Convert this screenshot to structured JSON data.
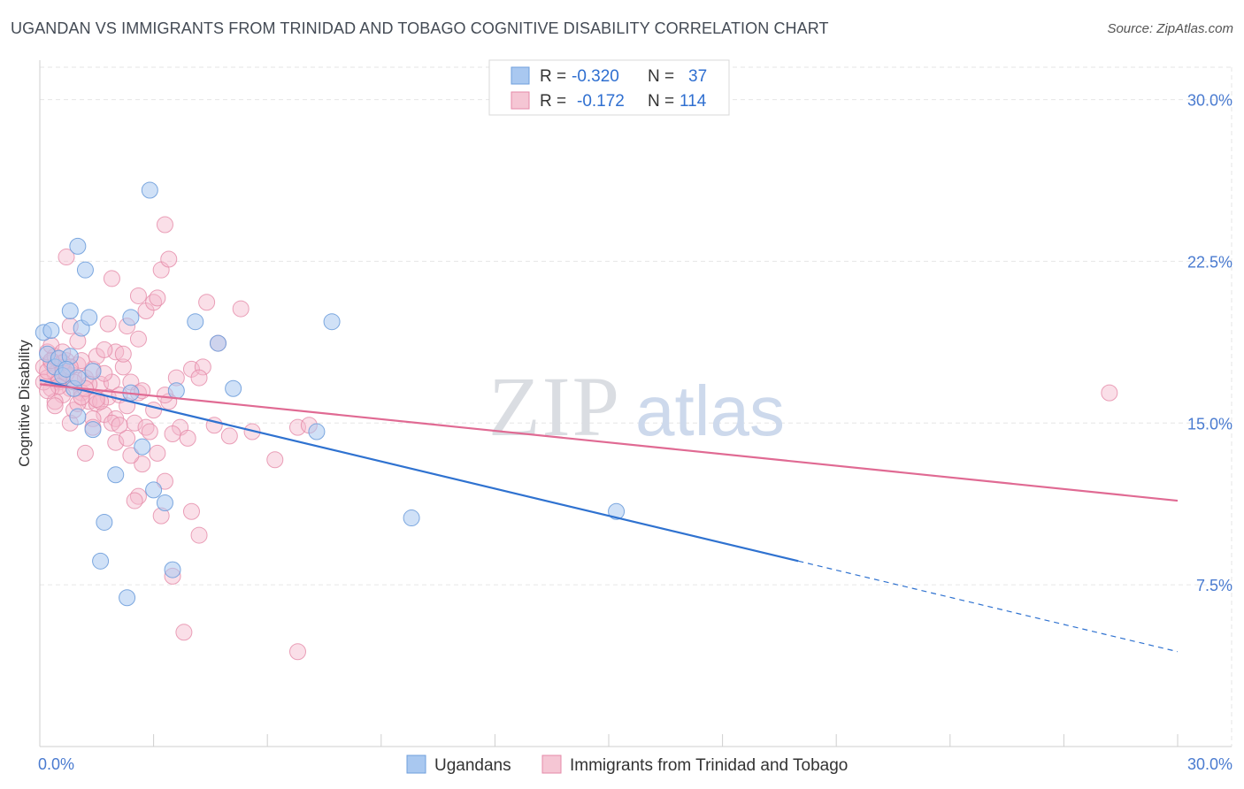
{
  "title": "UGANDAN VS IMMIGRANTS FROM TRINIDAD AND TOBAGO COGNITIVE DISABILITY CORRELATION CHART",
  "source": "Source: ZipAtlas.com",
  "watermark": {
    "zip": "ZIP",
    "atlas": "atlas"
  },
  "colors": {
    "blue_fill": "#a9c8f0",
    "blue_stroke": "#6f9fdc",
    "blue_line": "#2f72d0",
    "pink_fill": "#f5b8cb",
    "pink_stroke": "#e58aa8",
    "pink_line": "#e06a93",
    "grid": "#e6e6e6",
    "axis_text": "#4a7bd0"
  },
  "legend_top": {
    "rows": [
      {
        "r_label": "R = ",
        "r_value": "-0.320",
        "n_label": "N = ",
        "n_value": "37"
      },
      {
        "r_label": "R = ",
        "r_value": "-0.172",
        "n_label": "N = ",
        "n_value": "114"
      }
    ]
  },
  "legend_bottom": [
    "Ugandans",
    "Immigrants from Trinidad and Tobago"
  ],
  "chart_data": {
    "type": "scatter",
    "title": "UGANDAN VS IMMIGRANTS FROM TRINIDAD AND TOBAGO COGNITIVE DISABILITY CORRELATION CHART",
    "xlabel": "",
    "ylabel": "Cognitive Disability",
    "xlim": [
      0,
      30
    ],
    "ylim": [
      0,
      31.5
    ],
    "x_tick_labels": [
      "0.0%",
      "30.0%"
    ],
    "y_ticks": [
      7.5,
      15.0,
      22.5,
      30.0
    ],
    "y_tick_labels": [
      "7.5%",
      "15.0%",
      "22.5%",
      "30.0%"
    ],
    "legend_position": "top-center",
    "series": [
      {
        "name": "Ugandans",
        "r": -0.32,
        "n": 37,
        "trend": {
          "x0": 0.0,
          "y0": 17.0,
          "x1": 20.0,
          "y1": 8.6,
          "dash_to_x": 30.0,
          "dash_to_y": 4.4
        },
        "points": [
          [
            0.1,
            19.2
          ],
          [
            0.3,
            19.3
          ],
          [
            0.2,
            18.2
          ],
          [
            0.4,
            17.6
          ],
          [
            0.6,
            17.2
          ],
          [
            0.5,
            18.0
          ],
          [
            0.8,
            18.1
          ],
          [
            0.9,
            16.6
          ],
          [
            0.7,
            17.5
          ],
          [
            1.0,
            17.1
          ],
          [
            1.4,
            17.4
          ],
          [
            1.1,
            19.4
          ],
          [
            0.8,
            20.2
          ],
          [
            1.3,
            19.9
          ],
          [
            1.0,
            23.2
          ],
          [
            1.2,
            22.1
          ],
          [
            2.9,
            25.8
          ],
          [
            2.4,
            19.9
          ],
          [
            4.1,
            19.7
          ],
          [
            4.7,
            18.7
          ],
          [
            7.7,
            19.7
          ],
          [
            3.6,
            16.5
          ],
          [
            5.1,
            16.6
          ],
          [
            2.4,
            16.4
          ],
          [
            7.3,
            14.6
          ],
          [
            1.4,
            14.7
          ],
          [
            2.7,
            13.9
          ],
          [
            2.0,
            12.6
          ],
          [
            1.0,
            15.3
          ],
          [
            3.0,
            11.9
          ],
          [
            3.3,
            11.3
          ],
          [
            1.7,
            10.4
          ],
          [
            9.8,
            10.6
          ],
          [
            15.2,
            10.9
          ],
          [
            1.6,
            8.6
          ],
          [
            3.5,
            8.2
          ],
          [
            2.3,
            6.9
          ]
        ]
      },
      {
        "name": "Immigrants from Trinidad and Tobago",
        "r": -0.172,
        "n": 114,
        "trend": {
          "x0": 0.0,
          "y0": 16.8,
          "x1": 30.0,
          "y1": 11.4
        },
        "points": [
          [
            0.1,
            17.6
          ],
          [
            0.2,
            17.1
          ],
          [
            0.3,
            17.8
          ],
          [
            0.4,
            17.3
          ],
          [
            0.5,
            16.9
          ],
          [
            0.6,
            17.4
          ],
          [
            0.7,
            17.9
          ],
          [
            0.8,
            16.6
          ],
          [
            0.9,
            17.2
          ],
          [
            1.0,
            17.7
          ],
          [
            0.2,
            18.3
          ],
          [
            0.4,
            18.1
          ],
          [
            0.6,
            16.3
          ],
          [
            0.3,
            16.6
          ],
          [
            0.5,
            17.0
          ],
          [
            0.1,
            16.9
          ],
          [
            1.1,
            16.4
          ],
          [
            1.2,
            17.1
          ],
          [
            1.3,
            16.0
          ],
          [
            1.4,
            17.5
          ],
          [
            1.5,
            15.9
          ],
          [
            1.6,
            16.8
          ],
          [
            1.7,
            15.4
          ],
          [
            1.8,
            16.2
          ],
          [
            1.9,
            16.9
          ],
          [
            2.0,
            15.2
          ],
          [
            2.1,
            16.3
          ],
          [
            2.2,
            17.6
          ],
          [
            2.3,
            15.8
          ],
          [
            2.4,
            16.9
          ],
          [
            2.5,
            15.0
          ],
          [
            2.6,
            16.4
          ],
          [
            0.8,
            19.5
          ],
          [
            1.0,
            18.8
          ],
          [
            1.5,
            18.1
          ],
          [
            1.8,
            19.6
          ],
          [
            2.0,
            18.3
          ],
          [
            2.3,
            19.5
          ],
          [
            2.6,
            18.9
          ],
          [
            2.8,
            20.2
          ],
          [
            1.9,
            21.7
          ],
          [
            2.6,
            20.9
          ],
          [
            3.0,
            20.6
          ],
          [
            3.2,
            22.1
          ],
          [
            3.4,
            22.6
          ],
          [
            3.3,
            24.2
          ],
          [
            0.7,
            22.7
          ],
          [
            3.1,
            20.8
          ],
          [
            4.4,
            20.6
          ],
          [
            5.3,
            20.3
          ],
          [
            3.4,
            16.0
          ],
          [
            3.7,
            14.8
          ],
          [
            4.0,
            17.5
          ],
          [
            4.3,
            17.6
          ],
          [
            4.6,
            14.9
          ],
          [
            5.0,
            14.4
          ],
          [
            5.6,
            14.6
          ],
          [
            6.2,
            13.3
          ],
          [
            6.8,
            14.8
          ],
          [
            7.1,
            14.9
          ],
          [
            3.9,
            14.3
          ],
          [
            3.5,
            14.5
          ],
          [
            2.8,
            14.8
          ],
          [
            2.7,
            13.1
          ],
          [
            2.6,
            11.6
          ],
          [
            3.3,
            12.3
          ],
          [
            3.2,
            10.7
          ],
          [
            4.0,
            10.9
          ],
          [
            4.2,
            9.8
          ],
          [
            3.5,
            7.9
          ],
          [
            3.8,
            5.3
          ],
          [
            6.8,
            4.4
          ],
          [
            1.2,
            13.6
          ],
          [
            0.8,
            15.0
          ],
          [
            1.4,
            15.2
          ],
          [
            2.0,
            14.1
          ],
          [
            2.3,
            14.3
          ],
          [
            1.6,
            16.0
          ],
          [
            1.1,
            17.9
          ],
          [
            2.2,
            18.2
          ],
          [
            3.6,
            17.1
          ],
          [
            4.2,
            17.1
          ],
          [
            4.7,
            18.7
          ],
          [
            0.4,
            16.0
          ],
          [
            0.9,
            15.6
          ],
          [
            1.7,
            17.3
          ],
          [
            2.4,
            13.5
          ],
          [
            3.1,
            13.6
          ],
          [
            0.3,
            18.6
          ],
          [
            0.6,
            18.3
          ],
          [
            1.3,
            16.8
          ],
          [
            0.2,
            17.4
          ],
          [
            0.5,
            16.7
          ],
          [
            0.7,
            17.3
          ],
          [
            1.0,
            15.9
          ],
          [
            1.9,
            15.0
          ],
          [
            1.4,
            14.8
          ],
          [
            2.9,
            14.6
          ],
          [
            3.0,
            15.6
          ],
          [
            28.2,
            16.4
          ],
          [
            0.9,
            16.9
          ],
          [
            0.4,
            15.8
          ],
          [
            1.5,
            16.1
          ],
          [
            0.6,
            17.8
          ],
          [
            2.1,
            14.9
          ],
          [
            1.7,
            18.4
          ],
          [
            2.7,
            16.5
          ],
          [
            0.2,
            16.5
          ],
          [
            1.1,
            16.2
          ],
          [
            2.5,
            11.4
          ],
          [
            3.3,
            16.3
          ],
          [
            0.8,
            17.6
          ],
          [
            1.2,
            16.6
          ],
          [
            0.3,
            17.9
          ]
        ]
      }
    ]
  }
}
